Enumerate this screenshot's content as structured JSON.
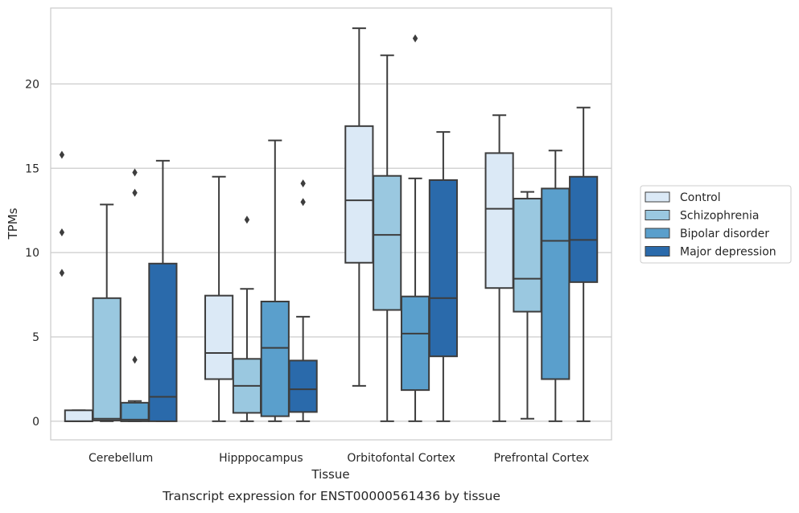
{
  "chart_data": {
    "type": "box",
    "caption": "Transcript expression for ENST00000561436 by tissue",
    "xlabel": "Tissue",
    "ylabel": "TPMs",
    "ylim": [
      -1.1,
      24.5
    ],
    "yticks": [
      0,
      5,
      10,
      15,
      20
    ],
    "grid": true,
    "legend_placement": "right",
    "categories": [
      "Cerebellum",
      "Hipppocampus",
      "Orbitofontal Cortex",
      "Prefrontal Cortex"
    ],
    "series": [
      {
        "name": "Control",
        "color": "#dbe9f6",
        "boxes": [
          {
            "whislo": 0.0,
            "q1": 0.0,
            "med": 0.0,
            "q3": 0.65,
            "whishi": 0.65,
            "fliers": []
          },
          {
            "whislo": 0.0,
            "q1": 2.5,
            "med": 4.05,
            "q3": 7.45,
            "whishi": 14.5,
            "fliers": []
          },
          {
            "whislo": 2.1,
            "q1": 9.4,
            "med": 13.1,
            "q3": 17.5,
            "whishi": 23.3,
            "fliers": []
          },
          {
            "whislo": 0.0,
            "q1": 7.9,
            "med": 12.6,
            "q3": 15.9,
            "whishi": 18.15,
            "fliers": []
          }
        ]
      },
      {
        "name": "Schizophrenia",
        "color": "#9ac8e0",
        "boxes": [
          {
            "whislo": 0.0,
            "q1": 0.05,
            "med": 0.15,
            "q3": 7.3,
            "whishi": 12.85,
            "fliers": []
          },
          {
            "whislo": 0.0,
            "q1": 0.5,
            "med": 2.1,
            "q3": 3.7,
            "whishi": 7.85,
            "fliers": [
              11.95
            ]
          },
          {
            "whislo": 0.0,
            "q1": 6.6,
            "med": 11.05,
            "q3": 14.55,
            "whishi": 21.7,
            "fliers": []
          },
          {
            "whislo": 0.15,
            "q1": 6.5,
            "med": 8.45,
            "q3": 13.2,
            "whishi": 13.6,
            "fliers": []
          }
        ]
      },
      {
        "name": "Bipolar disorder",
        "color": "#5a9fcc",
        "boxes": [
          {
            "whislo": 0.0,
            "q1": 0.0,
            "med": 0.1,
            "q3": 1.1,
            "whishi": 1.2,
            "fliers": [
              3.65,
              13.55,
              14.75
            ]
          },
          {
            "whislo": 0.0,
            "q1": 0.3,
            "med": 4.35,
            "q3": 7.1,
            "whishi": 16.65,
            "fliers": []
          },
          {
            "whislo": 0.0,
            "q1": 1.85,
            "med": 5.2,
            "q3": 7.4,
            "whishi": 14.4,
            "fliers": [
              22.7
            ]
          },
          {
            "whislo": 0.0,
            "q1": 2.5,
            "med": 10.7,
            "q3": 13.8,
            "whishi": 16.05,
            "fliers": []
          }
        ]
      },
      {
        "name": "Major depression",
        "color": "#2a6aab",
        "boxes": [
          {
            "whislo": 0.0,
            "q1": 0.0,
            "med": 1.45,
            "q3": 9.35,
            "whishi": 15.45,
            "fliers": []
          },
          {
            "whislo": 0.0,
            "q1": 0.55,
            "med": 1.9,
            "q3": 3.6,
            "whishi": 6.2,
            "fliers": [
              13.0,
              14.1
            ]
          },
          {
            "whislo": 0.0,
            "q1": 3.85,
            "med": 7.3,
            "q3": 14.3,
            "whishi": 17.15,
            "fliers": []
          },
          {
            "whislo": 0.0,
            "q1": 8.25,
            "med": 10.75,
            "q3": 14.5,
            "whishi": 18.6,
            "fliers": []
          }
        ]
      }
    ],
    "extra_fliers": [
      {
        "category": "Cerebellum",
        "x_offset_series": -0.6,
        "values": [
          8.8,
          11.2,
          15.8
        ]
      }
    ]
  }
}
